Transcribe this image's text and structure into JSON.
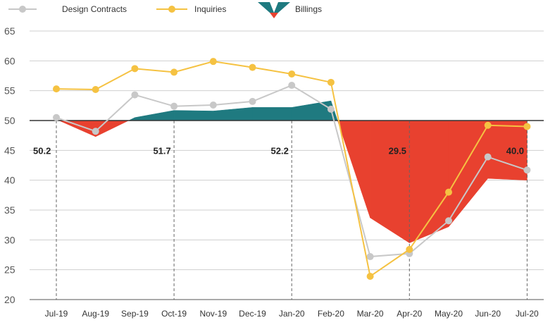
{
  "chart_data": {
    "type": "line",
    "categories": [
      "Jul-19",
      "Aug-19",
      "Sep-19",
      "Oct-19",
      "Nov-19",
      "Dec-19",
      "Jan-20",
      "Feb-20",
      "Mar-20",
      "Apr-20",
      "May-20",
      "Jun-20",
      "Jul-20"
    ],
    "yticks": [
      "65",
      "60",
      "55",
      "50",
      "45",
      "40",
      "35",
      "30",
      "25",
      "20"
    ],
    "ylim": [
      20,
      65
    ],
    "baseline": 50,
    "grid": true,
    "legend_position": "top-left",
    "series": [
      {
        "name": "Design Contracts",
        "type": "line",
        "color": "#c8c8c8",
        "values": [
          50.5,
          48.2,
          54.3,
          52.4,
          52.6,
          53.2,
          55.9,
          51.9,
          27.2,
          27.7,
          33.2,
          43.9,
          41.7
        ]
      },
      {
        "name": "Inquiries",
        "type": "line",
        "color": "#f5c242",
        "values": [
          55.3,
          55.2,
          58.7,
          58.1,
          59.9,
          58.9,
          57.8,
          56.4,
          23.9,
          28.4,
          38.0,
          49.2,
          49.0
        ]
      },
      {
        "name": "Billings",
        "type": "area",
        "color_above": "#1f7a80",
        "color_below": "#e8412f",
        "values": [
          50.2,
          47.3,
          50.5,
          51.7,
          51.6,
          52.2,
          52.2,
          53.3,
          33.7,
          29.5,
          32.2,
          40.3,
          40.0
        ]
      }
    ],
    "annotations": [
      {
        "label": "50.2",
        "x": "Jul-19",
        "y": 45.2
      },
      {
        "label": "51.7",
        "x": "Oct-19",
        "y": 45.2
      },
      {
        "label": "52.2",
        "x": "Jan-20",
        "y": 45.2
      },
      {
        "label": "29.5",
        "x": "Apr-20",
        "y": 45.2
      },
      {
        "label": "40.0",
        "x": "Jul-20",
        "y": 45.2
      }
    ],
    "dashed_markers": [
      "Jul-19",
      "Oct-19",
      "Jan-20",
      "Apr-20",
      "Jul-20"
    ]
  }
}
